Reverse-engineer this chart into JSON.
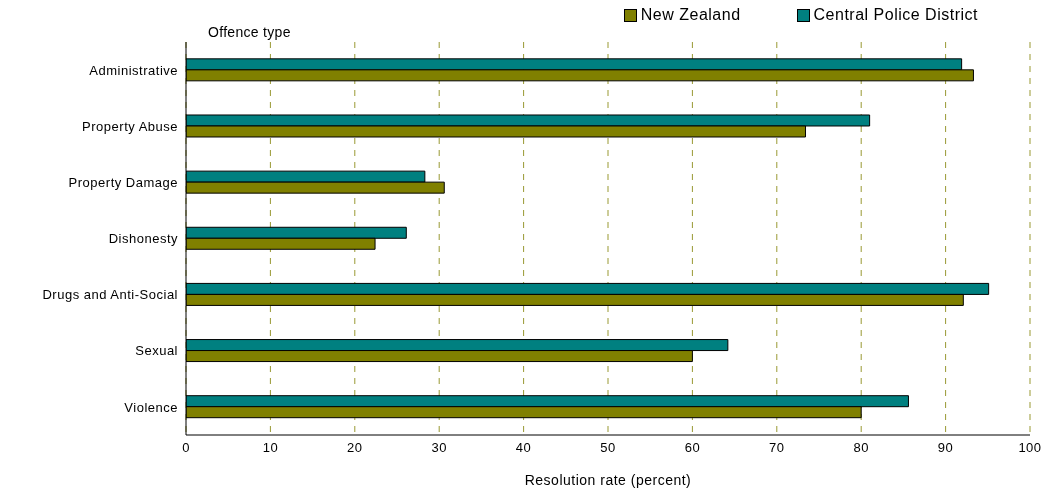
{
  "chart_data": {
    "type": "bar",
    "orientation": "horizontal",
    "xlabel": "Resolution rate (percent)",
    "ylabel": "Offence type",
    "categories": [
      "Administrative",
      "Property Abuse",
      "Property Damage",
      "Dishonesty",
      "Drugs and Anti-Social",
      "Sexual",
      "Violence"
    ],
    "series": [
      {
        "name": "New Zealand",
        "color": "#808000",
        "values": [
          93.3,
          73.4,
          30.6,
          22.4,
          92.1,
          60.0,
          80.0
        ]
      },
      {
        "name": "Central Police District",
        "color": "#008080",
        "values": [
          91.9,
          81.0,
          28.3,
          26.1,
          95.1,
          64.2,
          85.6
        ]
      }
    ],
    "xlim": [
      0,
      100
    ],
    "xticks": [
      0,
      10,
      20,
      30,
      40,
      50,
      60,
      70,
      80,
      90,
      100
    ],
    "grid": "x",
    "legend": "top right"
  }
}
